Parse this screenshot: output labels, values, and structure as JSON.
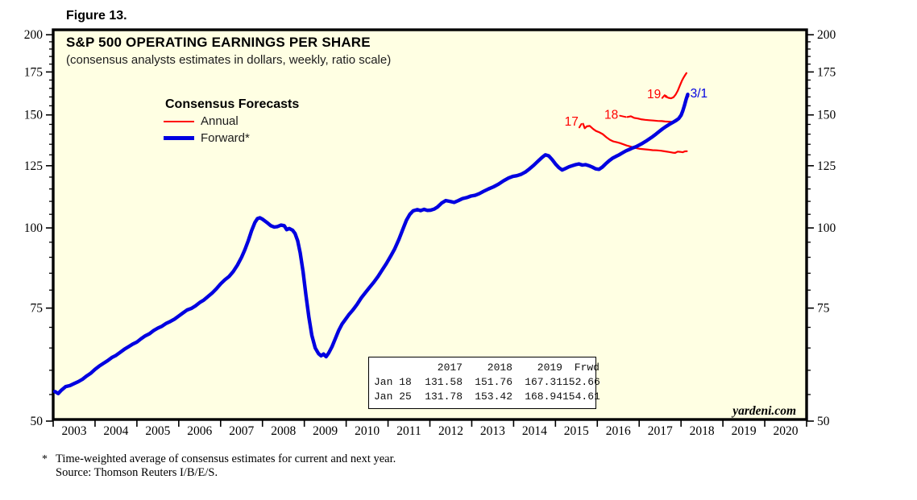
{
  "figure": {
    "label": "Figure 13."
  },
  "chart": {
    "title": "S&P 500 OPERATING EARNINGS PER SHARE",
    "subtitle": "(consensus analysts estimates in dollars, weekly, ratio scale)",
    "watermark": "yardeni.com",
    "background": "#FFFFE3",
    "frame_color": "#000000"
  },
  "legend": {
    "title": "Consensus Forecasts",
    "items": [
      {
        "label": "Annual",
        "color": "#FF0000",
        "width": 2
      },
      {
        "label": "Forward*",
        "color": "#0000E0",
        "width": 5
      }
    ]
  },
  "estimates_table": {
    "columns": [
      "",
      "2017",
      "2018",
      "2019",
      "Frwd"
    ],
    "rows": [
      [
        "Jan 18",
        "131.58",
        "151.76",
        "167.31",
        "152.66"
      ],
      [
        "Jan 25",
        "131.78",
        "153.42",
        "168.94",
        "154.61"
      ]
    ]
  },
  "footnote": {
    "marker": "*",
    "line1": "Time-weighted average of consensus estimates for current and next year.",
    "line2": "Source: Thomson Reuters I/B/E/S."
  },
  "chart_data": {
    "type": "line",
    "title": "S&P 500 OPERATING EARNINGS PER SHARE",
    "subtitle": "(consensus analysts estimates in dollars, weekly, ratio scale)",
    "y_scale": "log",
    "ylim": [
      50,
      200
    ],
    "y_ticks": [
      50,
      75,
      100,
      125,
      150,
      175,
      200
    ],
    "y_minor_ticks": [
      55,
      60,
      65,
      70,
      80,
      85,
      90,
      95,
      105,
      110,
      115,
      120,
      130,
      135,
      140,
      145,
      155,
      160,
      165,
      170,
      180,
      185,
      190,
      195
    ],
    "x_tick_years": [
      2003,
      2004,
      2005,
      2006,
      2007,
      2008,
      2009,
      2010,
      2011,
      2012,
      2013,
      2014,
      2015,
      2016,
      2017,
      2018,
      2019,
      2020
    ],
    "xlim": [
      2003,
      2021
    ],
    "grid": false,
    "legend_position": "top-left",
    "series": [
      {
        "name": "Annual 2017 consensus",
        "key": "annual-2017",
        "color": "#FF0000",
        "width": 2.2,
        "points": [
          [
            2015.66,
            145.3
          ],
          [
            2015.7,
            143.0
          ],
          [
            2015.75,
            144.0
          ],
          [
            2015.82,
            144.2
          ],
          [
            2015.9,
            142.6
          ],
          [
            2015.97,
            141.6
          ],
          [
            2016.05,
            140.9
          ],
          [
            2016.13,
            140.0
          ],
          [
            2016.22,
            138.4
          ],
          [
            2016.3,
            137.2
          ],
          [
            2016.38,
            136.4
          ],
          [
            2016.46,
            136.0
          ],
          [
            2016.54,
            135.6
          ],
          [
            2016.62,
            135.0
          ],
          [
            2016.7,
            134.4
          ],
          [
            2016.78,
            134.0
          ],
          [
            2016.86,
            133.5
          ],
          [
            2016.94,
            133.1
          ],
          [
            2017.02,
            132.8
          ],
          [
            2017.12,
            132.6
          ],
          [
            2017.22,
            132.4
          ],
          [
            2017.32,
            132.2
          ],
          [
            2017.42,
            132.1
          ],
          [
            2017.52,
            131.9
          ],
          [
            2017.62,
            131.6
          ],
          [
            2017.72,
            131.3
          ],
          [
            2017.8,
            131.0
          ],
          [
            2017.86,
            130.9
          ],
          [
            2017.92,
            131.5
          ],
          [
            2017.98,
            131.4
          ],
          [
            2018.04,
            131.2
          ],
          [
            2018.09,
            131.6
          ],
          [
            2018.14,
            131.7
          ]
        ]
      },
      {
        "name": "Annual 2018 consensus",
        "key": "annual-2018",
        "color": "#FF0000",
        "width": 2.2,
        "points": [
          [
            2016.72,
            148.9
          ],
          [
            2016.8,
            149.3
          ],
          [
            2016.88,
            148.4
          ],
          [
            2016.96,
            148.1
          ],
          [
            2017.04,
            147.7
          ],
          [
            2017.14,
            147.4
          ],
          [
            2017.24,
            147.2
          ],
          [
            2017.34,
            147.0
          ],
          [
            2017.44,
            146.8
          ],
          [
            2017.54,
            146.7
          ],
          [
            2017.62,
            146.5
          ],
          [
            2017.7,
            146.4
          ],
          [
            2017.78,
            146.3
          ],
          [
            2017.85,
            146.5
          ],
          [
            2017.9,
            146.8
          ],
          [
            2017.95,
            148.2
          ],
          [
            2018.0,
            150.0
          ],
          [
            2018.05,
            153.6
          ],
          [
            2018.09,
            156.5
          ],
          [
            2018.13,
            158.8
          ],
          [
            2018.18,
            160.5
          ]
        ]
      },
      {
        "name": "Annual 2019 consensus",
        "key": "annual-2019",
        "color": "#FF0000",
        "width": 2.2,
        "points": [
          [
            2017.63,
            160.2
          ],
          [
            2017.7,
            159.5
          ],
          [
            2017.76,
            159.2
          ],
          [
            2017.82,
            159.8
          ],
          [
            2017.87,
            161.3
          ],
          [
            2017.92,
            163.5
          ],
          [
            2017.97,
            166.5
          ],
          [
            2018.02,
            169.5
          ],
          [
            2018.06,
            171.5
          ],
          [
            2018.1,
            173.2
          ],
          [
            2018.13,
            174.3
          ]
        ]
      },
      {
        "name": "Forward earnings",
        "key": "forward",
        "color": "#0000E0",
        "width": 4.4,
        "points": [
          [
            2003.04,
            55.6
          ],
          [
            2003.12,
            55.2
          ],
          [
            2003.2,
            55.9
          ],
          [
            2003.3,
            56.6
          ],
          [
            2003.4,
            56.8
          ],
          [
            2003.5,
            57.2
          ],
          [
            2003.6,
            57.6
          ],
          [
            2003.7,
            58.1
          ],
          [
            2003.8,
            58.8
          ],
          [
            2003.9,
            59.4
          ],
          [
            2004.0,
            60.2
          ],
          [
            2004.1,
            60.9
          ],
          [
            2004.2,
            61.5
          ],
          [
            2004.3,
            62.1
          ],
          [
            2004.4,
            62.8
          ],
          [
            2004.5,
            63.3
          ],
          [
            2004.6,
            64.0
          ],
          [
            2004.7,
            64.7
          ],
          [
            2004.8,
            65.3
          ],
          [
            2004.9,
            65.9
          ],
          [
            2005.0,
            66.4
          ],
          [
            2005.1,
            67.2
          ],
          [
            2005.2,
            67.9
          ],
          [
            2005.3,
            68.4
          ],
          [
            2005.4,
            69.2
          ],
          [
            2005.5,
            69.8
          ],
          [
            2005.6,
            70.3
          ],
          [
            2005.7,
            71.0
          ],
          [
            2005.8,
            71.5
          ],
          [
            2005.9,
            72.1
          ],
          [
            2006.0,
            72.9
          ],
          [
            2006.1,
            73.7
          ],
          [
            2006.2,
            74.5
          ],
          [
            2006.3,
            74.9
          ],
          [
            2006.4,
            75.6
          ],
          [
            2006.5,
            76.5
          ],
          [
            2006.6,
            77.2
          ],
          [
            2006.7,
            78.2
          ],
          [
            2006.8,
            79.2
          ],
          [
            2006.9,
            80.4
          ],
          [
            2007.0,
            81.8
          ],
          [
            2007.1,
            83.0
          ],
          [
            2007.2,
            84.0
          ],
          [
            2007.3,
            85.5
          ],
          [
            2007.4,
            87.5
          ],
          [
            2007.5,
            90.0
          ],
          [
            2007.58,
            92.5
          ],
          [
            2007.66,
            95.5
          ],
          [
            2007.74,
            99.0
          ],
          [
            2007.82,
            102.0
          ],
          [
            2007.88,
            103.4
          ],
          [
            2007.94,
            103.7
          ],
          [
            2008.0,
            103.2
          ],
          [
            2008.06,
            102.5
          ],
          [
            2008.12,
            101.8
          ],
          [
            2008.2,
            100.8
          ],
          [
            2008.28,
            100.3
          ],
          [
            2008.36,
            100.5
          ],
          [
            2008.44,
            101.0
          ],
          [
            2008.52,
            100.8
          ],
          [
            2008.58,
            99.4
          ],
          [
            2008.64,
            99.8
          ],
          [
            2008.72,
            99.2
          ],
          [
            2008.78,
            98.0
          ],
          [
            2008.84,
            95.5
          ],
          [
            2008.9,
            91.5
          ],
          [
            2008.97,
            85.5
          ],
          [
            2009.04,
            78.5
          ],
          [
            2009.11,
            72.5
          ],
          [
            2009.18,
            68.0
          ],
          [
            2009.26,
            65.0
          ],
          [
            2009.34,
            63.7
          ],
          [
            2009.4,
            63.2
          ],
          [
            2009.46,
            63.6
          ],
          [
            2009.52,
            63.0
          ],
          [
            2009.58,
            63.8
          ],
          [
            2009.66,
            65.3
          ],
          [
            2009.74,
            67.2
          ],
          [
            2009.82,
            69.2
          ],
          [
            2009.9,
            70.8
          ],
          [
            2009.98,
            72.0
          ],
          [
            2010.06,
            73.2
          ],
          [
            2010.16,
            74.5
          ],
          [
            2010.26,
            76.0
          ],
          [
            2010.36,
            77.8
          ],
          [
            2010.46,
            79.3
          ],
          [
            2010.56,
            80.8
          ],
          [
            2010.66,
            82.3
          ],
          [
            2010.76,
            84.0
          ],
          [
            2010.86,
            86.0
          ],
          [
            2010.96,
            88.0
          ],
          [
            2011.06,
            90.3
          ],
          [
            2011.16,
            92.8
          ],
          [
            2011.26,
            96.0
          ],
          [
            2011.36,
            99.8
          ],
          [
            2011.44,
            102.8
          ],
          [
            2011.52,
            105.0
          ],
          [
            2011.6,
            106.3
          ],
          [
            2011.7,
            106.8
          ],
          [
            2011.78,
            106.4
          ],
          [
            2011.86,
            106.9
          ],
          [
            2011.94,
            106.5
          ],
          [
            2012.02,
            106.6
          ],
          [
            2012.1,
            107.0
          ],
          [
            2012.18,
            107.8
          ],
          [
            2012.28,
            109.3
          ],
          [
            2012.38,
            110.3
          ],
          [
            2012.48,
            110.0
          ],
          [
            2012.58,
            109.6
          ],
          [
            2012.68,
            110.3
          ],
          [
            2012.78,
            111.1
          ],
          [
            2012.88,
            111.5
          ],
          [
            2012.98,
            112.1
          ],
          [
            2013.08,
            112.4
          ],
          [
            2013.18,
            113.1
          ],
          [
            2013.28,
            114.0
          ],
          [
            2013.4,
            115.0
          ],
          [
            2013.52,
            115.9
          ],
          [
            2013.64,
            117.0
          ],
          [
            2013.76,
            118.4
          ],
          [
            2013.88,
            119.6
          ],
          [
            2013.98,
            120.3
          ],
          [
            2014.08,
            120.6
          ],
          [
            2014.18,
            121.2
          ],
          [
            2014.28,
            122.2
          ],
          [
            2014.38,
            123.6
          ],
          [
            2014.48,
            125.2
          ],
          [
            2014.58,
            127.0
          ],
          [
            2014.68,
            128.8
          ],
          [
            2014.76,
            130.0
          ],
          [
            2014.84,
            129.5
          ],
          [
            2014.92,
            127.8
          ],
          [
            2015.0,
            125.8
          ],
          [
            2015.08,
            124.2
          ],
          [
            2015.16,
            123.1
          ],
          [
            2015.24,
            123.8
          ],
          [
            2015.32,
            124.5
          ],
          [
            2015.4,
            125.0
          ],
          [
            2015.48,
            125.5
          ],
          [
            2015.56,
            125.8
          ],
          [
            2015.64,
            125.3
          ],
          [
            2015.72,
            125.5
          ],
          [
            2015.8,
            125.0
          ],
          [
            2015.88,
            124.4
          ],
          [
            2015.96,
            123.6
          ],
          [
            2016.04,
            123.4
          ],
          [
            2016.12,
            124.4
          ],
          [
            2016.2,
            125.9
          ],
          [
            2016.28,
            127.2
          ],
          [
            2016.36,
            128.4
          ],
          [
            2016.44,
            129.2
          ],
          [
            2016.52,
            130.0
          ],
          [
            2016.6,
            130.9
          ],
          [
            2016.68,
            131.8
          ],
          [
            2016.76,
            132.5
          ],
          [
            2016.84,
            133.2
          ],
          [
            2016.92,
            133.8
          ],
          [
            2017.0,
            134.6
          ],
          [
            2017.08,
            135.5
          ],
          [
            2017.16,
            136.5
          ],
          [
            2017.24,
            137.6
          ],
          [
            2017.32,
            138.7
          ],
          [
            2017.4,
            140.0
          ],
          [
            2017.48,
            141.4
          ],
          [
            2017.56,
            142.7
          ],
          [
            2017.64,
            143.9
          ],
          [
            2017.72,
            145.0
          ],
          [
            2017.8,
            146.0
          ],
          [
            2017.88,
            147.0
          ],
          [
            2017.94,
            148.0
          ],
          [
            2018.0,
            149.8
          ],
          [
            2018.04,
            152.0
          ],
          [
            2018.08,
            155.0
          ],
          [
            2018.12,
            158.5
          ],
          [
            2018.16,
            161.5
          ]
        ]
      }
    ],
    "annotations": [
      {
        "text": "17",
        "color": "#FF0000",
        "x": 2015.55,
        "y": 146.5,
        "anchor": "end"
      },
      {
        "text": "18",
        "color": "#FF0000",
        "x": 2016.5,
        "y": 150.2,
        "anchor": "end"
      },
      {
        "text": "19",
        "color": "#FF0000",
        "x": 2017.52,
        "y": 161.5,
        "anchor": "end"
      },
      {
        "text": "3/1",
        "color": "#0000E0",
        "x": 2018.22,
        "y": 162.0,
        "anchor": "start"
      }
    ],
    "leaders": [
      {
        "color": "#FF0000",
        "points": [
          [
            2015.57,
            143.4
          ],
          [
            2015.62,
            145.2
          ]
        ]
      },
      {
        "color": "#FF0000",
        "points": [
          [
            2016.54,
            149.6
          ],
          [
            2016.68,
            148.9
          ]
        ]
      },
      {
        "color": "#FF0000",
        "points": [
          [
            2017.55,
            159.4
          ],
          [
            2017.61,
            161.0
          ],
          [
            2017.66,
            160.3
          ]
        ]
      }
    ]
  }
}
